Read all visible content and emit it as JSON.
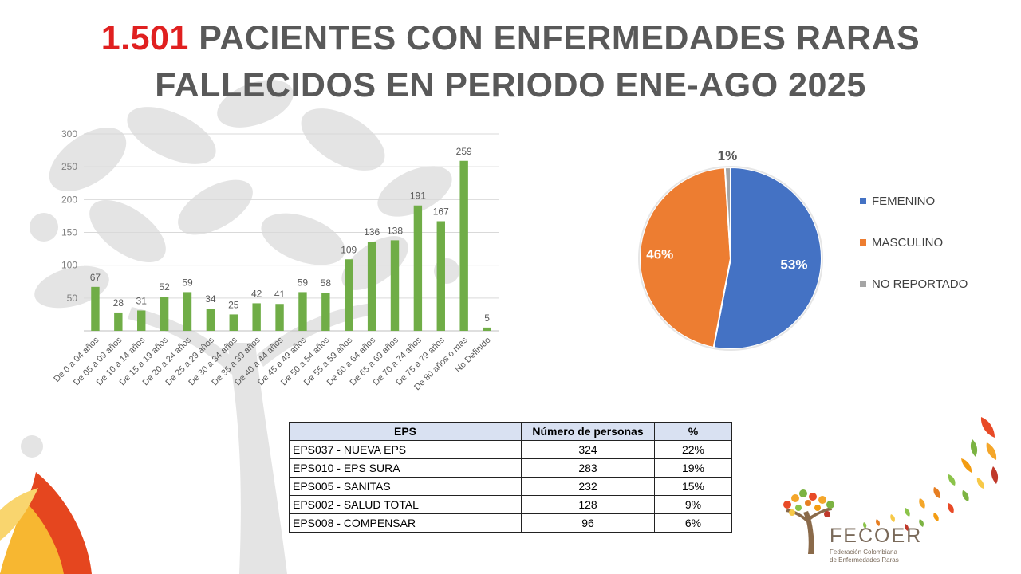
{
  "title": {
    "highlight": "1.501",
    "line1_rest": " PACIENTES CON ENFERMEDADES RARAS",
    "line2": "FALLECIDOS EN PERIODO ENE-AGO 2025"
  },
  "colors": {
    "bar": "#70ad47",
    "highlight": "#e02020",
    "femenino": "#4472c4",
    "masculino": "#ed7d31",
    "no_reportado": "#a5a5a5"
  },
  "chart_data": [
    {
      "type": "bar",
      "title": "",
      "xlabel": "",
      "ylabel": "",
      "ylim": [
        0,
        300
      ],
      "yticks": [
        50,
        100,
        150,
        200,
        250,
        300
      ],
      "grid": true,
      "categories": [
        "De 0 a 04 años",
        "De 05 a 09 años",
        "De 10 a 14 años",
        "De 15 a 19 años",
        "De 20 a 24 años",
        "De 25 a 29 años",
        "De 30 a 34 años",
        "De 35 a 39 años",
        "De 40 a 44 años",
        "De 45 a 49 años",
        "De 50 a 54 años",
        "De 55 a 59 años",
        "De 60 a 64 años",
        "De 65 a 69 años",
        "De 70 a 74 años",
        "De 75 a 79 años",
        "De 80 años o más",
        "No Definido"
      ],
      "values": [
        67,
        28,
        31,
        52,
        59,
        34,
        25,
        42,
        41,
        59,
        58,
        109,
        136,
        138,
        191,
        167,
        259,
        5
      ]
    },
    {
      "type": "pie",
      "title": "",
      "legend_position": "right",
      "labels": [
        "FEMENINO",
        "MASCULINO",
        "NO REPORTADO"
      ],
      "values": [
        53,
        46,
        1
      ],
      "data_labels": [
        "53%",
        "46%",
        "1%"
      ]
    }
  ],
  "table": {
    "headers": [
      "EPS",
      "Número de personas",
      "%"
    ],
    "rows": [
      [
        "EPS037 - NUEVA EPS",
        "324",
        "22%"
      ],
      [
        "EPS010 - EPS SURA",
        "283",
        "19%"
      ],
      [
        "EPS005 - SANITAS",
        "232",
        "15%"
      ],
      [
        "EPS002 - SALUD TOTAL",
        "128",
        "9%"
      ],
      [
        "EPS008 - COMPENSAR",
        "96",
        "6%"
      ]
    ]
  },
  "logo": {
    "name": "FECOER",
    "subtitle_line1": "Federación Colombiana",
    "subtitle_line2": "de Enfermedades Raras"
  }
}
